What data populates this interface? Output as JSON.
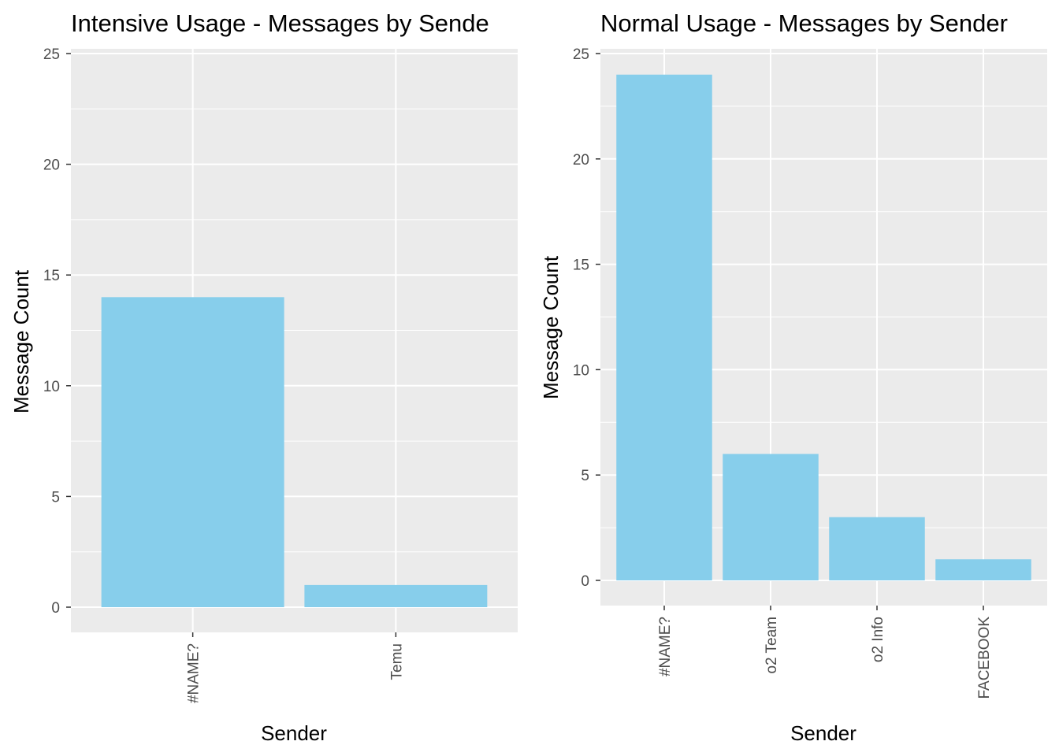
{
  "chart_data": [
    {
      "type": "bar",
      "title": "Intensive Usage - Messages by Sende",
      "xlabel": "Sender",
      "ylabel": "Message Count",
      "categories": [
        "#NAME?",
        "Temu"
      ],
      "values": [
        14,
        1
      ],
      "ylim": [
        0,
        25
      ],
      "yticks": [
        0,
        5,
        10,
        15,
        20,
        25
      ],
      "grid": true,
      "bar_color": "#87CEEB",
      "panel_color": "#EBEBEB"
    },
    {
      "type": "bar",
      "title": "Normal Usage - Messages by Sender",
      "xlabel": "Sender",
      "ylabel": "Message Count",
      "categories": [
        "#NAME?",
        "o2 Team",
        "o2 Info",
        "FACEBOOK"
      ],
      "values": [
        24,
        6,
        3,
        1
      ],
      "ylim": [
        0,
        25
      ],
      "yticks": [
        0,
        5,
        10,
        15,
        20,
        25
      ],
      "grid": true,
      "bar_color": "#87CEEB",
      "panel_color": "#EBEBEB"
    }
  ]
}
